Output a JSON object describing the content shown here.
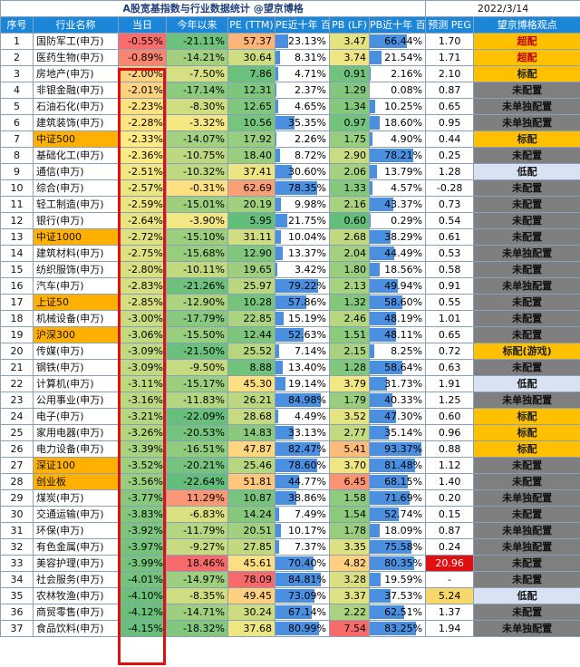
{
  "title": "A股宽基指数与行业数据统计 @望京博格",
  "date": "2022/3/14",
  "headers": [
    "序号",
    "行业名称",
    "当日",
    "今年以来",
    "PE (TTM)",
    "PE近十年 百分位",
    "PB (LF)",
    "PB近十年 百分位",
    "预测 PEG",
    "望京博格观点"
  ],
  "colors": {
    "header_bg": "#1c86d8",
    "index_highlight": "#ffb000",
    "bar": "#4a8fe0",
    "red_box": "#e01010"
  },
  "rows": [
    {
      "no": "1",
      "name": "国防军工(申万)",
      "idx": false,
      "day": "-0.55%",
      "ytd": "-21.11%",
      "pe": "57.37",
      "pe_pct": "23.13%",
      "pb": "3.47",
      "pb_pct": "66.44%",
      "peg": "1.70",
      "view": "超配"
    },
    {
      "no": "2",
      "name": "医药生物(申万)",
      "idx": false,
      "day": "-0.89%",
      "ytd": "-14.21%",
      "pe": "30.64",
      "pe_pct": "8.31%",
      "pb": "3.74",
      "pb_pct": "21.54%",
      "peg": "1.71",
      "view": "超配"
    },
    {
      "no": "3",
      "name": "房地产(申万)",
      "idx": false,
      "day": "-2.00%",
      "ytd": "-7.50%",
      "pe": "7.86",
      "pe_pct": "4.71%",
      "pb": "0.91",
      "pb_pct": "2.16%",
      "peg": "2.10",
      "view": "标配"
    },
    {
      "no": "4",
      "name": "非银金融(申万)",
      "idx": false,
      "day": "-2.01%",
      "ytd": "-17.14%",
      "pe": "12.31",
      "pe_pct": "2.37%",
      "pb": "1.29",
      "pb_pct": "0.08%",
      "peg": "0.87",
      "view": "未配置"
    },
    {
      "no": "5",
      "name": "石油石化(申万)",
      "idx": false,
      "day": "-2.23%",
      "ytd": "-8.30%",
      "pe": "12.65",
      "pe_pct": "4.65%",
      "pb": "1.34",
      "pb_pct": "10.25%",
      "peg": "0.65",
      "view": "未单独配置"
    },
    {
      "no": "6",
      "name": "建筑装饰(申万)",
      "idx": false,
      "day": "-2.28%",
      "ytd": "-3.32%",
      "pe": "10.56",
      "pe_pct": "35.35%",
      "pb": "0.97",
      "pb_pct": "18.60%",
      "peg": "0.95",
      "view": "未单独配置"
    },
    {
      "no": "7",
      "name": "中证500",
      "idx": true,
      "day": "-2.33%",
      "ytd": "-14.07%",
      "pe": "17.92",
      "pe_pct": "2.26%",
      "pb": "1.75",
      "pb_pct": "4.90%",
      "peg": "0.44",
      "view": "标配"
    },
    {
      "no": "8",
      "name": "基础化工(申万)",
      "idx": false,
      "day": "-2.36%",
      "ytd": "-10.75%",
      "pe": "18.40",
      "pe_pct": "8.72%",
      "pb": "2.90",
      "pb_pct": "78.21%",
      "peg": "0.25",
      "view": "未配置"
    },
    {
      "no": "9",
      "name": "通信(申万)",
      "idx": false,
      "day": "-2.51%",
      "ytd": "-10.32%",
      "pe": "37.41",
      "pe_pct": "30.60%",
      "pb": "2.06",
      "pb_pct": "13.79%",
      "peg": "1.28",
      "view": "低配"
    },
    {
      "no": "10",
      "name": "综合(申万)",
      "idx": false,
      "day": "-2.57%",
      "ytd": "-0.31%",
      "pe": "62.69",
      "pe_pct": "78.35%",
      "pb": "1.33",
      "pb_pct": "4.57%",
      "peg": "-0.28",
      "view": "未配置"
    },
    {
      "no": "11",
      "name": "轻工制造(申万)",
      "idx": false,
      "day": "-2.59%",
      "ytd": "-15.01%",
      "pe": "20.19",
      "pe_pct": "9.98%",
      "pb": "2.16",
      "pb_pct": "43.37%",
      "peg": "0.73",
      "view": "未配置"
    },
    {
      "no": "12",
      "name": "银行(申万)",
      "idx": false,
      "day": "-2.64%",
      "ytd": "-3.90%",
      "pe": "5.95",
      "pe_pct": "21.75%",
      "pb": "0.60",
      "pb_pct": "0.29%",
      "peg": "0.54",
      "view": "未配置"
    },
    {
      "no": "13",
      "name": "中证1000",
      "idx": true,
      "day": "-2.72%",
      "ytd": "-15.10%",
      "pe": "31.11",
      "pe_pct": "10.04%",
      "pb": "2.68",
      "pb_pct": "38.29%",
      "peg": "0.61",
      "view": "未配置"
    },
    {
      "no": "14",
      "name": "建筑材料(申万)",
      "idx": false,
      "day": "-2.75%",
      "ytd": "-15.68%",
      "pe": "12.90",
      "pe_pct": "13.37%",
      "pb": "2.04",
      "pb_pct": "44.49%",
      "peg": "0.53",
      "view": "未单独配置"
    },
    {
      "no": "15",
      "name": "纺织服饰(申万)",
      "idx": false,
      "day": "-2.80%",
      "ytd": "-10.11%",
      "pe": "19.65",
      "pe_pct": "3.42%",
      "pb": "1.80",
      "pb_pct": "18.56%",
      "peg": "0.58",
      "view": "未配置"
    },
    {
      "no": "16",
      "name": "汽车(申万)",
      "idx": false,
      "day": "-2.83%",
      "ytd": "-21.26%",
      "pe": "25.97",
      "pe_pct": "79.22%",
      "pb": "2.13",
      "pb_pct": "49.94%",
      "peg": "0.91",
      "view": "未单独配置"
    },
    {
      "no": "17",
      "name": "上证50",
      "idx": true,
      "day": "-2.85%",
      "ytd": "-12.90%",
      "pe": "10.28",
      "pe_pct": "57.86%",
      "pb": "1.32",
      "pb_pct": "58.60%",
      "peg": "0.55",
      "view": "未配置"
    },
    {
      "no": "18",
      "name": "机械设备(申万)",
      "idx": false,
      "day": "-3.00%",
      "ytd": "-17.79%",
      "pe": "22.85",
      "pe_pct": "15.19%",
      "pb": "2.46",
      "pb_pct": "48.19%",
      "peg": "1.01",
      "view": "未配置"
    },
    {
      "no": "19",
      "name": "沪深300",
      "idx": true,
      "day": "-3.06%",
      "ytd": "-15.50%",
      "pe": "12.44",
      "pe_pct": "52.63%",
      "pb": "1.51",
      "pb_pct": "48.11%",
      "peg": "0.65",
      "view": "未配置"
    },
    {
      "no": "20",
      "name": "传媒(申万)",
      "idx": false,
      "day": "-3.09%",
      "ytd": "-21.50%",
      "pe": "25.52",
      "pe_pct": "7.14%",
      "pb": "2.15",
      "pb_pct": "8.25%",
      "peg": "0.72",
      "view": "标配(游戏)"
    },
    {
      "no": "21",
      "name": "钢铁(申万)",
      "idx": false,
      "day": "-3.09%",
      "ytd": "-9.50%",
      "pe": "8.88",
      "pe_pct": "13.40%",
      "pb": "1.28",
      "pb_pct": "58.64%",
      "peg": "0.63",
      "view": "未配置"
    },
    {
      "no": "22",
      "name": "计算机(申万)",
      "idx": false,
      "day": "-3.11%",
      "ytd": "-15.17%",
      "pe": "45.30",
      "pe_pct": "19.14%",
      "pb": "3.79",
      "pb_pct": "31.73%",
      "peg": "1.91",
      "view": "低配"
    },
    {
      "no": "23",
      "name": "公用事业(申万)",
      "idx": false,
      "day": "-3.16%",
      "ytd": "-11.83%",
      "pe": "26.21",
      "pe_pct": "84.98%",
      "pb": "1.79",
      "pb_pct": "40.33%",
      "peg": "1.25",
      "view": "未单独配置"
    },
    {
      "no": "24",
      "name": "电子(申万)",
      "idx": false,
      "day": "-3.21%",
      "ytd": "-22.09%",
      "pe": "28.68",
      "pe_pct": "4.49%",
      "pb": "3.52",
      "pb_pct": "47.30%",
      "peg": "0.60",
      "view": "标配"
    },
    {
      "no": "25",
      "name": "家用电器(申万)",
      "idx": false,
      "day": "-3.26%",
      "ytd": "-20.53%",
      "pe": "14.83",
      "pe_pct": "33.13%",
      "pb": "2.77",
      "pb_pct": "35.14%",
      "peg": "0.96",
      "view": "标配"
    },
    {
      "no": "26",
      "name": "电力设备(申万)",
      "idx": false,
      "day": "-3.39%",
      "ytd": "-16.51%",
      "pe": "47.87",
      "pe_pct": "82.47%",
      "pb": "5.41",
      "pb_pct": "93.37%",
      "peg": "0.88",
      "view": "标配"
    },
    {
      "no": "27",
      "name": "深证100",
      "idx": true,
      "day": "-3.52%",
      "ytd": "-20.21%",
      "pe": "25.46",
      "pe_pct": "78.60%",
      "pb": "3.70",
      "pb_pct": "81.48%",
      "peg": "1.12",
      "view": "未配置"
    },
    {
      "no": "28",
      "name": "创业板",
      "idx": true,
      "day": "-3.56%",
      "ytd": "-22.64%",
      "pe": "51.81",
      "pe_pct": "44.77%",
      "pb": "6.45",
      "pb_pct": "68.15%",
      "peg": "1.40",
      "view": "未配置"
    },
    {
      "no": "29",
      "name": "煤炭(申万)",
      "idx": false,
      "day": "-3.77%",
      "ytd": "11.29%",
      "pe": "10.87",
      "pe_pct": "38.86%",
      "pb": "1.58",
      "pb_pct": "71.69%",
      "peg": "0.20",
      "view": "未单独配置"
    },
    {
      "no": "30",
      "name": "交通运输(申万)",
      "idx": false,
      "day": "-3.83%",
      "ytd": "-6.83%",
      "pe": "14.24",
      "pe_pct": "7.49%",
      "pb": "1.54",
      "pb_pct": "52.74%",
      "peg": "0.15",
      "view": "未配置"
    },
    {
      "no": "31",
      "name": "环保(申万)",
      "idx": false,
      "day": "-3.92%",
      "ytd": "-11.79%",
      "pe": "20.51",
      "pe_pct": "10.17%",
      "pb": "1.78",
      "pb_pct": "18.09%",
      "peg": "0.87",
      "view": "未单独配置"
    },
    {
      "no": "32",
      "name": "有色金属(申万)",
      "idx": false,
      "day": "-3.97%",
      "ytd": "-9.27%",
      "pe": "27.85",
      "pe_pct": "7.37%",
      "pb": "3.35",
      "pb_pct": "75.58%",
      "peg": "0.24",
      "view": "未单独配置"
    },
    {
      "no": "33",
      "name": "美容护理(申万)",
      "idx": false,
      "day": "-3.99%",
      "ytd": "18.46%",
      "pe": "45.61",
      "pe_pct": "70.40%",
      "pb": "4.82",
      "pb_pct": "80.35%",
      "peg": "20.96",
      "view": "未配置"
    },
    {
      "no": "34",
      "name": "社会服务(申万)",
      "idx": false,
      "day": "-4.01%",
      "ytd": "-14.97%",
      "pe": "78.09",
      "pe_pct": "84.81%",
      "pb": "3.28",
      "pb_pct": "19.59%",
      "peg": "-",
      "view": "未配置"
    },
    {
      "no": "35",
      "name": "农林牧渔(申万)",
      "idx": false,
      "day": "-4.10%",
      "ytd": "-8.35%",
      "pe": "49.45",
      "pe_pct": "73.09%",
      "pb": "3.37",
      "pb_pct": "37.53%",
      "peg": "5.24",
      "view": "低配"
    },
    {
      "no": "36",
      "name": "商贸零售(申万)",
      "idx": false,
      "day": "-4.12%",
      "ytd": "-14.71%",
      "pe": "30.24",
      "pe_pct": "67.14%",
      "pb": "2.22",
      "pb_pct": "62.51%",
      "peg": "1.37",
      "view": "未配置"
    },
    {
      "no": "37",
      "name": "食品饮料(申万)",
      "idx": false,
      "day": "-4.15%",
      "ytd": "-18.32%",
      "pe": "37.68",
      "pe_pct": "80.99%",
      "pb": "7.54",
      "pb_pct": "83.25%",
      "peg": "1.94",
      "view": "未单独配置"
    }
  ]
}
